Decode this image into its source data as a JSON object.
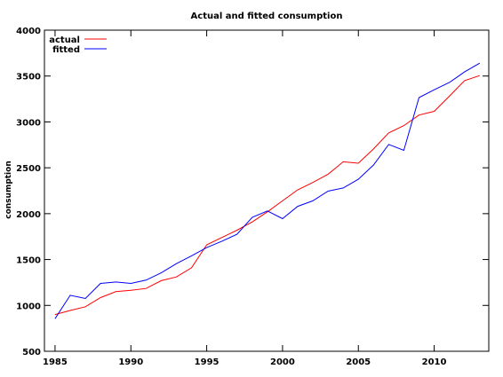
{
  "chart_data": {
    "type": "line",
    "title": "Actual and fitted consumption",
    "xlabel": "",
    "ylabel": "consumption",
    "xlim": [
      1984.3,
      2013.6
    ],
    "ylim": [
      500,
      4000
    ],
    "x_ticks": [
      1985,
      1990,
      1995,
      2000,
      2005,
      2010
    ],
    "y_ticks": [
      500,
      1000,
      1500,
      2000,
      2500,
      3000,
      3500,
      4000
    ],
    "grid": false,
    "legend_position": "top-left",
    "x": [
      1985,
      1986,
      1987,
      1988,
      1989,
      1990,
      1991,
      1992,
      1993,
      1994,
      1995,
      1996,
      1997,
      1998,
      1999,
      2000,
      2001,
      2002,
      2003,
      2004,
      2005,
      2006,
      2007,
      2008,
      2009,
      2010,
      2011,
      2012,
      2013
    ],
    "series": [
      {
        "name": "actual",
        "color": "#ff0000",
        "values": [
          900,
          945,
          985,
          1085,
          1150,
          1165,
          1185,
          1270,
          1310,
          1410,
          1660,
          1740,
          1820,
          1910,
          2020,
          2140,
          2260,
          2340,
          2430,
          2565,
          2550,
          2705,
          2880,
          2960,
          3075,
          3115,
          3280,
          3450,
          3505
        ]
      },
      {
        "name": "fitted",
        "color": "#0000ff",
        "values": [
          855,
          1110,
          1075,
          1240,
          1255,
          1240,
          1275,
          1355,
          1455,
          1540,
          1630,
          1700,
          1775,
          1960,
          2030,
          1945,
          2080,
          2140,
          2245,
          2280,
          2375,
          2530,
          2755,
          2690,
          3265,
          3350,
          3430,
          3545,
          3640
        ]
      }
    ]
  }
}
